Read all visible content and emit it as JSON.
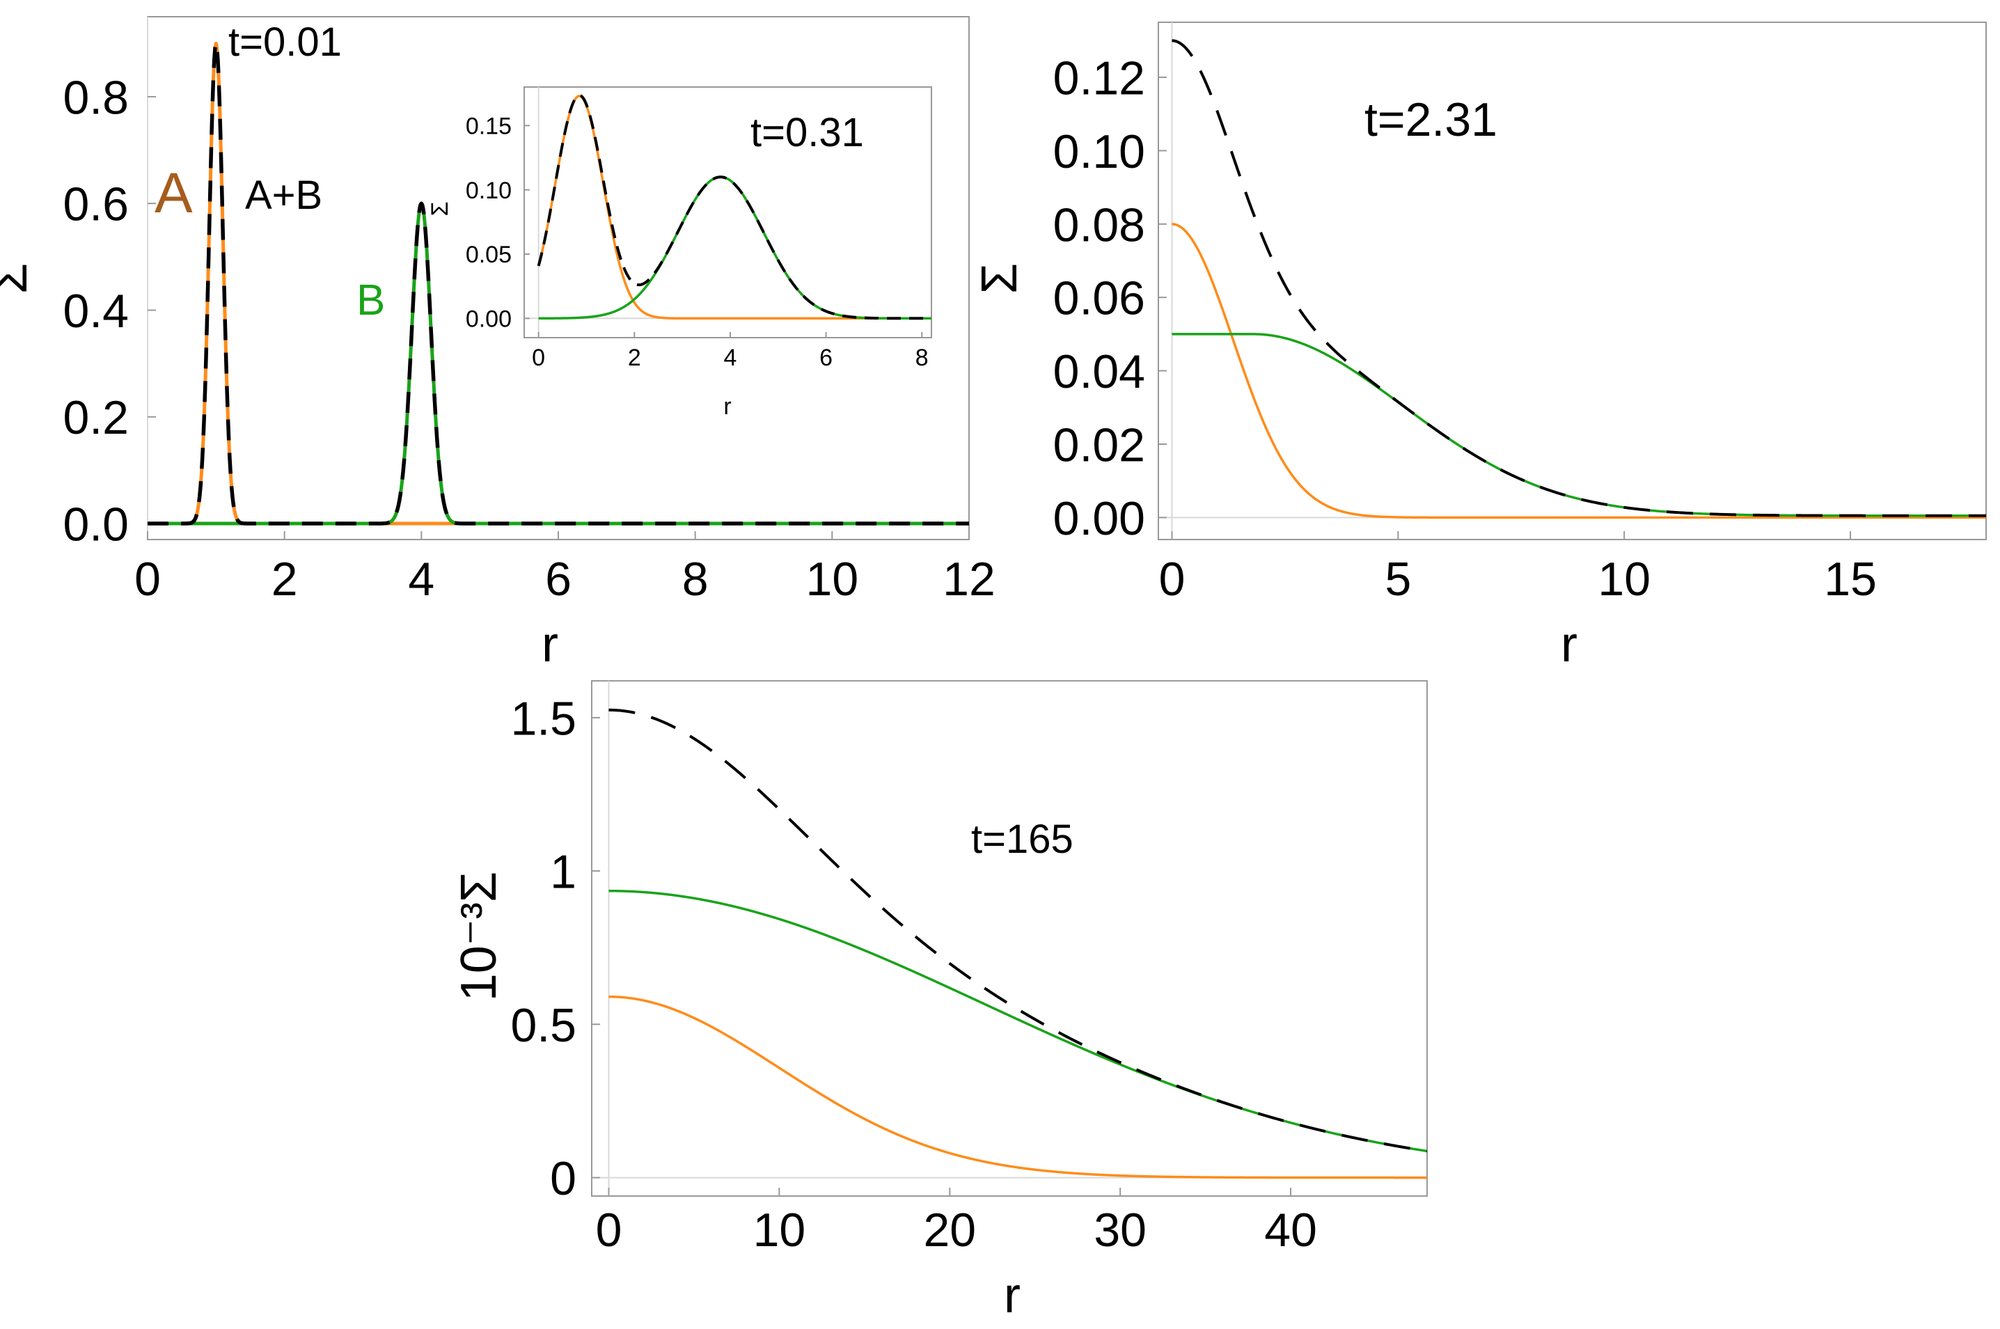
{
  "colors": {
    "a": "#ff8c1a",
    "b": "#1aa31a",
    "sum": "#000000",
    "label_a": "#a65c1c",
    "label_b": "#1aa31a",
    "frame": "#999999",
    "zero_line": "#d9d9d9"
  },
  "chart_data": [
    {
      "id": "panel1",
      "type": "line",
      "time_label": "t=0.01",
      "xlabel": "r",
      "ylabel": "Σ",
      "xlim": [
        0,
        12
      ],
      "ylim": [
        -0.03,
        0.95
      ],
      "xticks": [
        0,
        2,
        4,
        6,
        8,
        10,
        12
      ],
      "xtick_labels": [
        "0",
        "2",
        "4",
        "6",
        "8",
        "10",
        "12"
      ],
      "yticks": [
        0,
        0.2,
        0.4,
        0.6,
        0.8
      ],
      "ytick_labels": [
        "0.0",
        "0.2",
        "0.4",
        "0.6",
        "0.8"
      ],
      "annotations": {
        "a": "A",
        "sum": "A+B",
        "b": "B"
      },
      "series": [
        {
          "kind": "gauss",
          "key": "a",
          "amp": 0.9,
          "mu": 1.0,
          "sigma": 0.1
        },
        {
          "kind": "gauss",
          "key": "b",
          "amp": 0.6,
          "mu": 4.0,
          "sigma": 0.14
        },
        {
          "kind": "sum",
          "key": "sum"
        }
      ]
    },
    {
      "id": "inset",
      "type": "line",
      "time_label": "t=0.31",
      "xlabel": "r",
      "ylabel": "Σ",
      "xlim": [
        -0.3,
        8.2
      ],
      "ylim": [
        -0.015,
        0.18
      ],
      "xticks": [
        0,
        2,
        4,
        6,
        8
      ],
      "xtick_labels": [
        "0",
        "2",
        "4",
        "6",
        "8"
      ],
      "yticks": [
        0,
        0.05,
        0.1,
        0.15
      ],
      "ytick_labels": [
        "0.00",
        "0.05",
        "0.10",
        "0.15"
      ],
      "series": [
        {
          "kind": "gauss",
          "key": "a",
          "amp": 0.173,
          "mu": 0.85,
          "sigma": 0.5
        },
        {
          "kind": "gauss",
          "key": "b",
          "amp": 0.11,
          "mu": 3.8,
          "sigma": 0.9
        },
        {
          "kind": "sum",
          "key": "sum"
        }
      ]
    },
    {
      "id": "panel2",
      "type": "line",
      "time_label": "t=2.31",
      "xlabel": "r",
      "ylabel": "Σ",
      "xlim": [
        -0.3,
        18
      ],
      "ylim": [
        -0.006,
        0.135
      ],
      "xticks": [
        0,
        5,
        10,
        15
      ],
      "xtick_labels": [
        "0",
        "5",
        "10",
        "15"
      ],
      "yticks": [
        0,
        0.02,
        0.04,
        0.06,
        0.08,
        0.1,
        0.12
      ],
      "ytick_labels": [
        "0.00",
        "0.02",
        "0.04",
        "0.06",
        "0.08",
        "0.10",
        "0.12"
      ],
      "series": [
        {
          "kind": "gauss",
          "key": "a",
          "amp": 0.08,
          "mu": 0,
          "sigma": 1.35
        },
        {
          "kind": "ring",
          "key": "b",
          "amp": 0.0495,
          "mu": 1.8,
          "sigma": 3.3,
          "base": 0.0005
        },
        {
          "kind": "sum",
          "key": "sum"
        }
      ]
    },
    {
      "id": "panel3",
      "type": "line",
      "time_label": "t=165",
      "xlabel": "r",
      "ylabel": "10⁻³Σ",
      "xlim": [
        -1,
        48
      ],
      "ylim": [
        -0.06,
        1.62
      ],
      "xticks": [
        0,
        10,
        20,
        30,
        40
      ],
      "xtick_labels": [
        "0",
        "10",
        "20",
        "30",
        "40"
      ],
      "yticks": [
        0,
        0.5,
        1,
        1.5
      ],
      "ytick_labels": [
        "0",
        "0.5",
        "1",
        "1.5"
      ],
      "series": [
        {
          "kind": "gauss",
          "key": "a",
          "amp": 0.59,
          "mu": 0,
          "sigma": 10.0
        },
        {
          "kind": "gauss",
          "key": "b",
          "amp": 0.935,
          "mu": 0,
          "sigma": 22.0
        },
        {
          "kind": "sum",
          "key": "sum"
        }
      ]
    }
  ]
}
